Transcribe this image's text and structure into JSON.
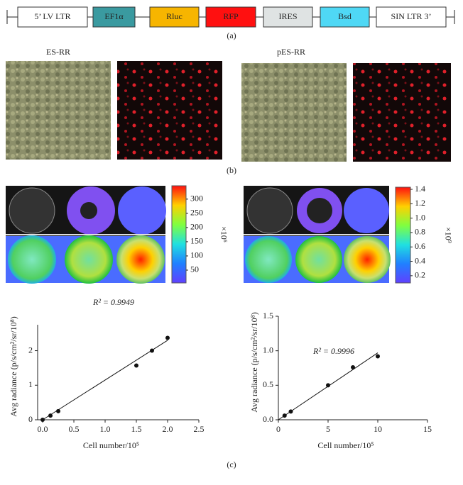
{
  "panel_a": {
    "label": "(a)",
    "boxes": [
      {
        "text": "5’ LV LTR",
        "color": "#ffffff"
      },
      {
        "text": "EF1α",
        "color": "#3a9aa0"
      },
      {
        "text": "Rluc",
        "color": "#f7b500"
      },
      {
        "text": "RFP",
        "color": "#ff1010"
      },
      {
        "text": "IRES",
        "color": "#dfe3e3"
      },
      {
        "text": "Bsd",
        "color": "#4fd8f5"
      },
      {
        "text": "SIN LTR 3’",
        "color": "#ffffff"
      }
    ]
  },
  "panel_b": {
    "label": "(b)",
    "titles": [
      "ES-RR",
      "pES-RR"
    ]
  },
  "panel_c": {
    "label": "(c)",
    "colorbars": [
      {
        "lim": [
          5,
          347
        ],
        "ticks": [
          50,
          100,
          150,
          200,
          250,
          300
        ],
        "unit": "×10⁶"
      },
      {
        "lim": [
          0.1,
          1.43
        ],
        "ticks": [
          0.2,
          0.4,
          0.6,
          0.8,
          {
            "value": 1,
            "label": "1.0"
          },
          1.2,
          1.4
        ],
        "unit": "×10⁹"
      }
    ]
  },
  "chart_data": [
    {
      "type": "scatter",
      "annotation": "R² = 0.9949",
      "x_label": "Cell number/10⁵",
      "y_label": "Avg radiance (p/s/cm²/sr/10⁸)",
      "color": "#111111",
      "x": [
        0,
        0.125,
        0.25,
        1.5,
        1.75,
        2.0
      ],
      "values": [
        0,
        0.12,
        0.25,
        1.57,
        2.0,
        2.37
      ],
      "fit": {
        "x": [
          0,
          2
        ],
        "y": [
          0,
          2.3
        ]
      },
      "xlim": [
        -0.08,
        2.5
      ],
      "xticks": [
        {
          "value": 0,
          "label": "0.0"
        },
        0.5,
        {
          "value": 1,
          "label": "1.0"
        },
        1.5,
        {
          "value": 2,
          "label": "2.0"
        },
        2.5
      ],
      "ylim": [
        0,
        2.75
      ],
      "yticks": [
        0,
        1,
        2
      ]
    },
    {
      "type": "scatter",
      "annotation": "R² = 0.9996",
      "x_label": "Cell number/10⁵",
      "y_label": "Avg radiance (p/s/cm²/sr/10⁸)",
      "color": "#111111",
      "x": [
        0.625,
        1.25,
        5,
        7.5,
        10
      ],
      "values": [
        0.06,
        0.12,
        0.5,
        0.76,
        0.92
      ],
      "fit": {
        "x": [
          0,
          10
        ],
        "y": [
          0,
          0.97
        ]
      },
      "xlim": [
        0,
        15
      ],
      "xticks": [
        0,
        5,
        10,
        15
      ],
      "ylim": [
        0,
        1.5
      ],
      "yticks": [
        {
          "value": 0,
          "label": "0.0"
        },
        0.5,
        {
          "value": 1,
          "label": "1.0"
        },
        1.5
      ]
    }
  ]
}
